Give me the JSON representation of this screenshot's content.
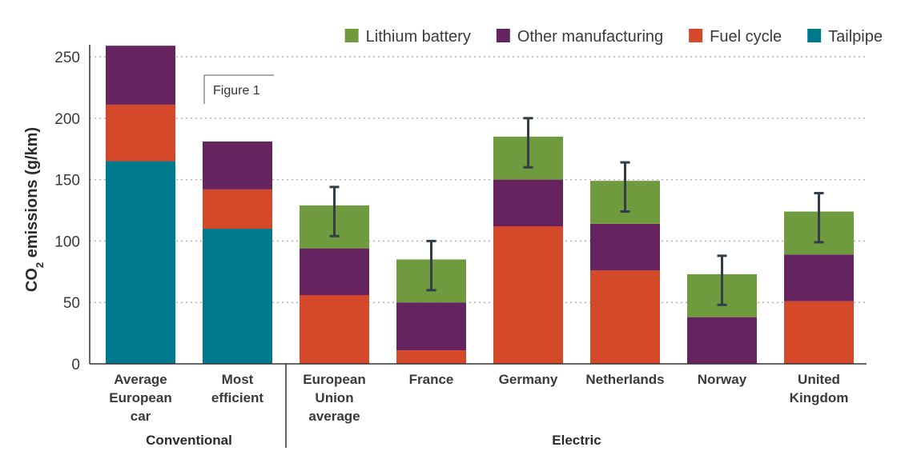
{
  "figure_label": "Figure 1",
  "chart_data": {
    "type": "bar",
    "stacked": true,
    "ylabel_main": "CO",
    "ylabel_sub": "2",
    "ylabel_rest": " emissions (g/km)",
    "ylim": [
      0,
      260
    ],
    "yticks": [
      0,
      50,
      100,
      150,
      200,
      250
    ],
    "grid": "horizontal dotted",
    "legend_position": "top-right",
    "categories": [
      [
        "Average",
        "European",
        "car"
      ],
      [
        "Most",
        "efficient"
      ],
      [
        "European",
        "Union",
        "average"
      ],
      [
        "France"
      ],
      [
        "Germany"
      ],
      [
        "Netherlands"
      ],
      [
        "Norway"
      ],
      [
        "United",
        "Kingdom"
      ]
    ],
    "groups": [
      {
        "label": "Conventional",
        "start": 0,
        "end": 1
      },
      {
        "label": "Electric",
        "start": 2,
        "end": 7
      }
    ],
    "series": [
      {
        "name": "Tailpipe",
        "color": "#00798C",
        "values": [
          165,
          110,
          0,
          0,
          0,
          0,
          0,
          0
        ]
      },
      {
        "name": "Fuel cycle",
        "color": "#D3492A",
        "values": [
          46,
          32,
          56,
          11,
          112,
          76,
          0,
          51
        ]
      },
      {
        "name": "Other manufacturing",
        "color": "#65235F",
        "values": [
          48,
          39,
          38,
          39,
          38,
          38,
          38,
          38
        ]
      },
      {
        "name": "Lithium battery",
        "color": "#6F9A3D",
        "values": [
          0,
          0,
          35,
          35,
          35,
          35,
          35,
          35
        ]
      }
    ],
    "legend_order": [
      "Lithium battery",
      "Other manufacturing",
      "Fuel cycle",
      "Tailpipe"
    ],
    "error_bars": [
      null,
      null,
      [
        104,
        144
      ],
      [
        60,
        100
      ],
      [
        160,
        200
      ],
      [
        124,
        164
      ],
      [
        48,
        88
      ],
      [
        99,
        139
      ]
    ]
  }
}
